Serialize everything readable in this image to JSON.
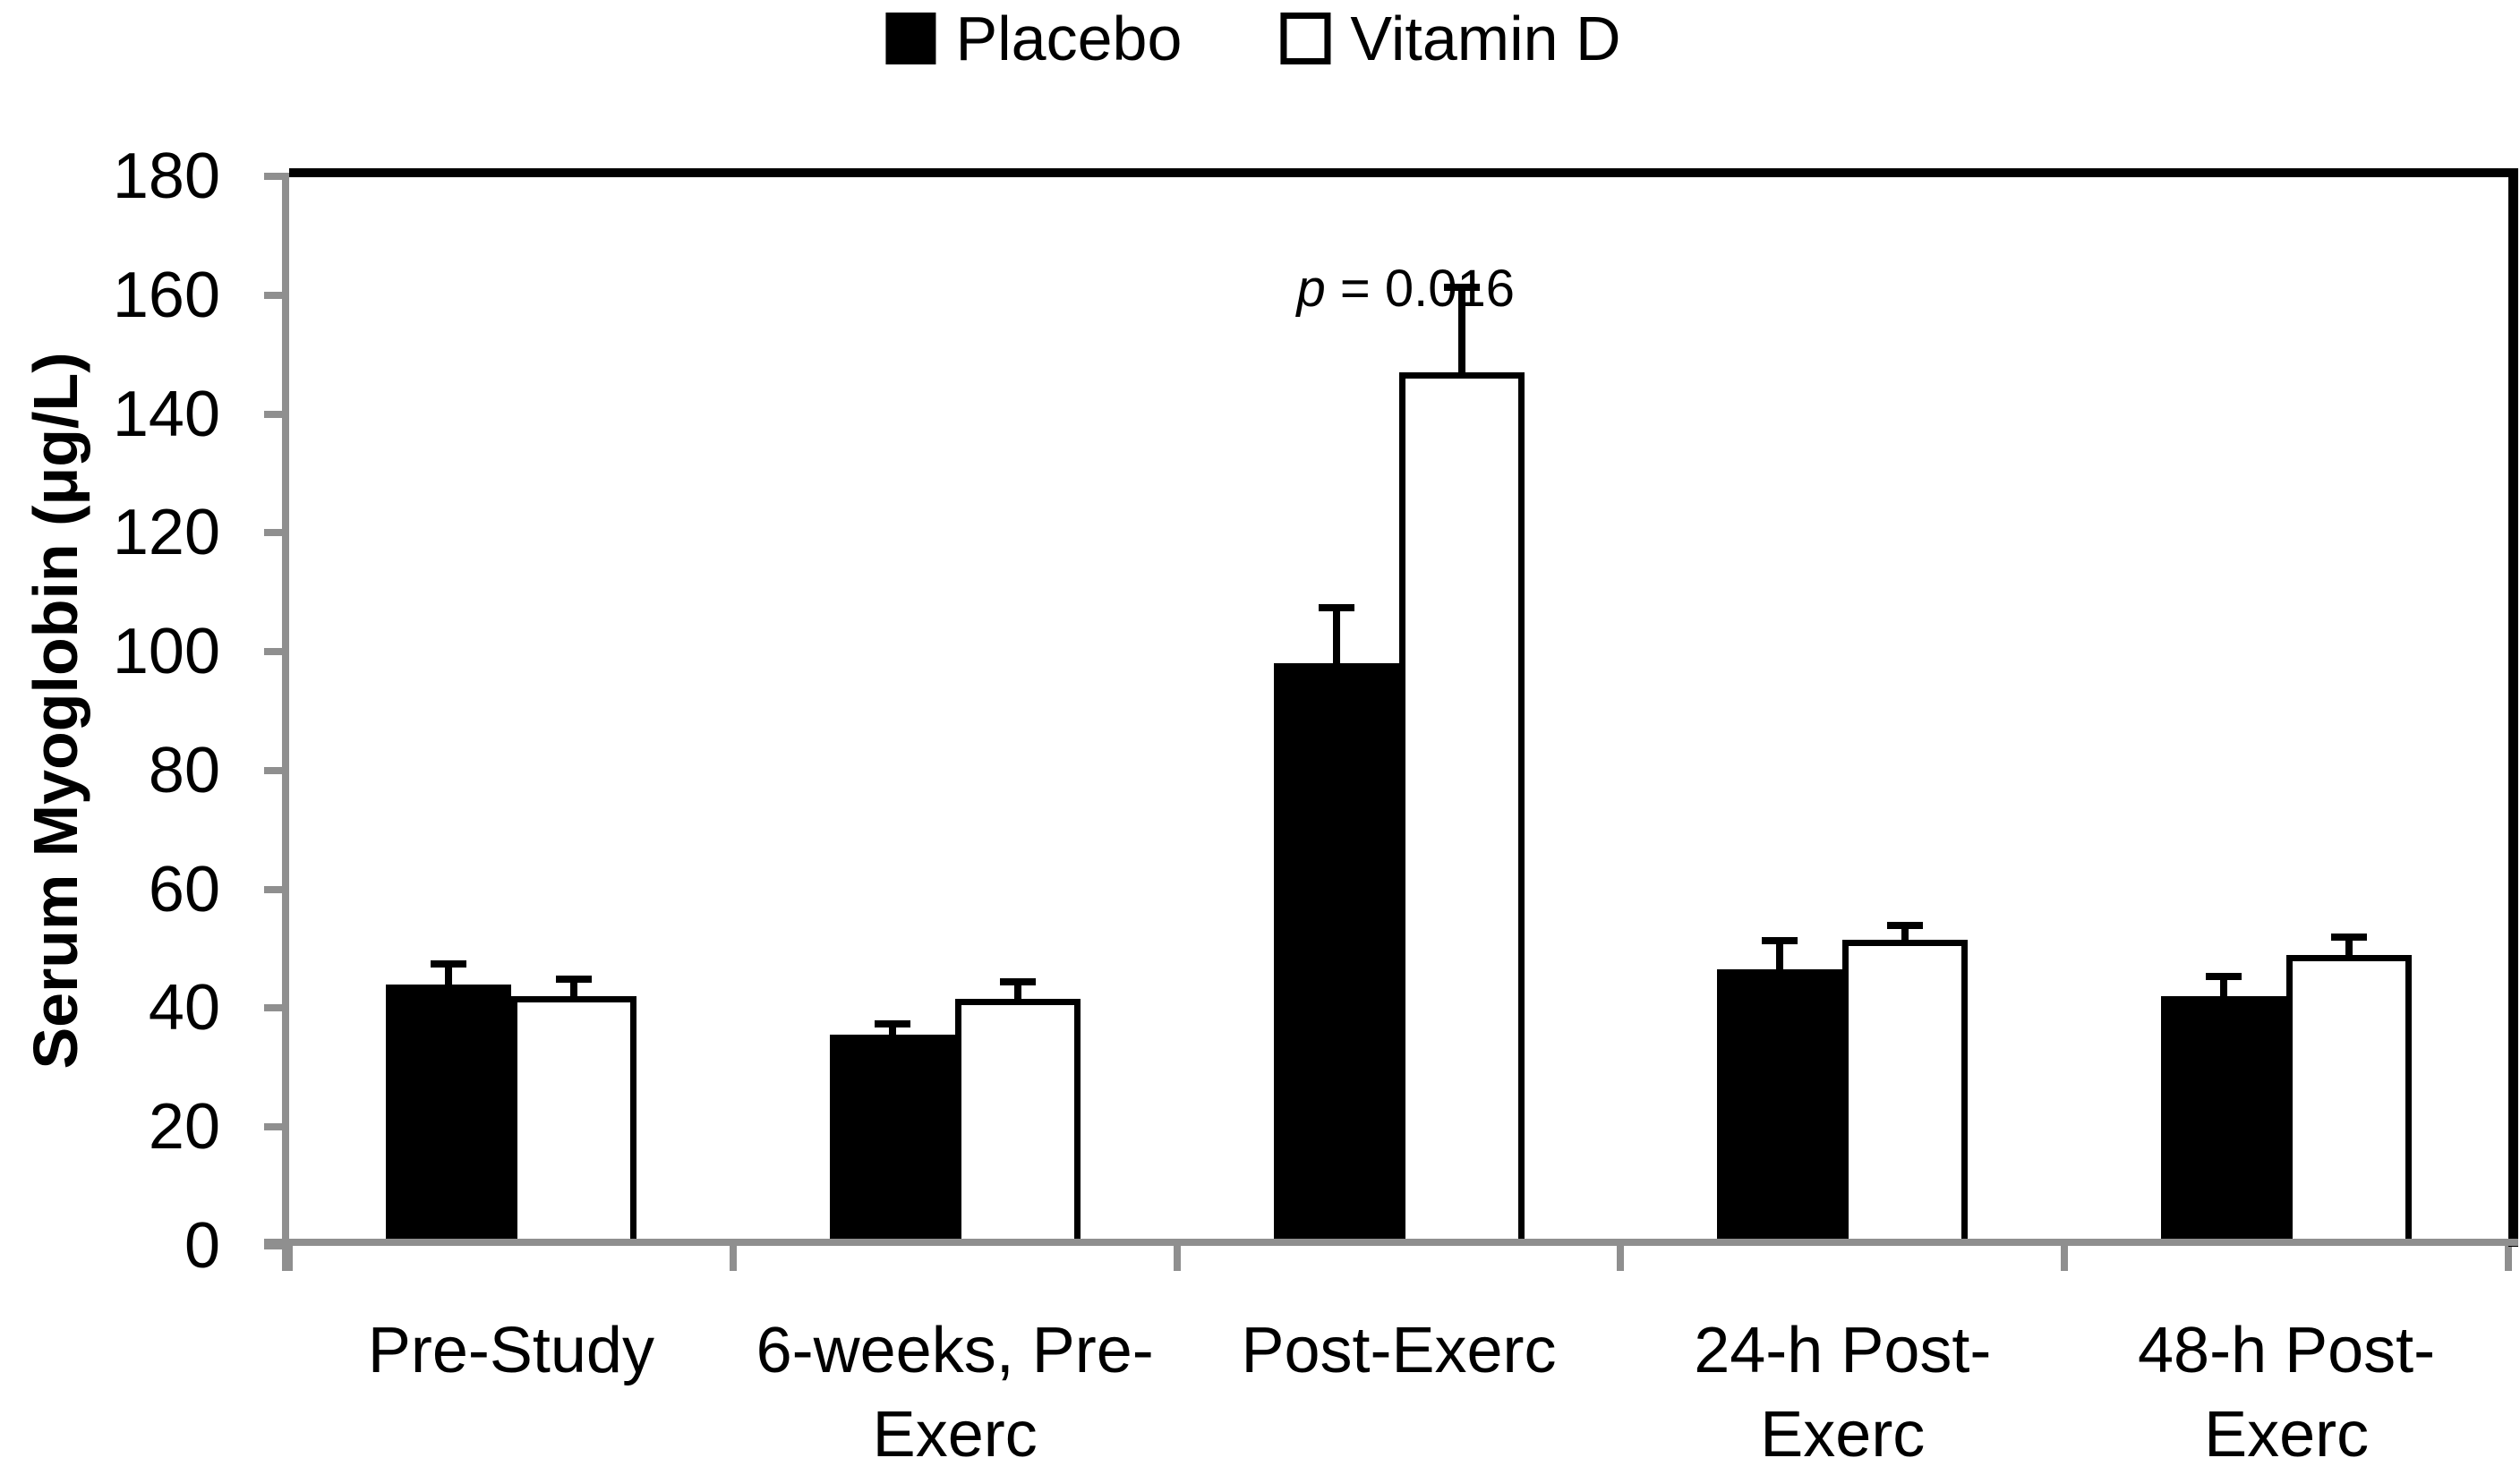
{
  "legend": [
    {
      "label": "Placebo",
      "fill": "#000000"
    },
    {
      "label": "Vitamin D",
      "fill": "#ffffff"
    }
  ],
  "annotation": {
    "var": "p",
    "rest": " = 0.016"
  },
  "chart_data": {
    "type": "bar",
    "title": "",
    "xlabel": "",
    "ylabel": "Serum Myoglobin (μg/L)",
    "ylim": [
      0,
      180
    ],
    "yticks": [
      0,
      20,
      40,
      60,
      80,
      100,
      120,
      140,
      160,
      180
    ],
    "grid": false,
    "legend_position": "top-center",
    "categories": [
      "Pre-Study",
      "6-weeks, Pre-Exerc",
      "Post-Exerc",
      "24-h Post-Exerc",
      "48-h Post-Exerc"
    ],
    "category_label_lines": [
      [
        "Pre-Study"
      ],
      [
        "6-weeks, Pre-",
        "Exerc"
      ],
      [
        "Post-Exerc"
      ],
      [
        "24-h Post-",
        "Exerc"
      ],
      [
        "48-h Post-",
        "Exerc"
      ]
    ],
    "series": [
      {
        "name": "Placebo",
        "fill": "#000000",
        "values": [
          44,
          35.5,
          98,
          46.5,
          42
        ],
        "errors_plus": [
          4,
          2.5,
          10,
          5.5,
          4
        ]
      },
      {
        "name": "Vitamin D",
        "fill": "#ffffff",
        "values": [
          42,
          41.5,
          147,
          51.5,
          49
        ],
        "errors_plus": [
          3.5,
          3.5,
          15,
          3,
          3.5
        ]
      }
    ],
    "annotation": {
      "text": "p = 0.016",
      "group": "Post-Exerc"
    }
  },
  "colors": {
    "axis_gray": "#8f8f8f",
    "frame_black": "#000000",
    "background": "#ffffff",
    "text": "#000000"
  }
}
